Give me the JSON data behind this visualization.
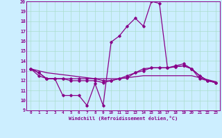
{
  "xlabel": "Windchill (Refroidissement éolien,°C)",
  "x": [
    0,
    1,
    2,
    3,
    4,
    5,
    6,
    7,
    8,
    9,
    10,
    11,
    12,
    13,
    14,
    15,
    16,
    17,
    18,
    19,
    20,
    21,
    22,
    23
  ],
  "line1": [
    13.2,
    12.8,
    12.2,
    12.2,
    10.5,
    10.5,
    10.5,
    9.5,
    11.7,
    9.5,
    15.9,
    16.5,
    17.5,
    18.3,
    17.5,
    20.0,
    19.8,
    13.3,
    13.5,
    13.7,
    13.2,
    12.2,
    12.0,
    11.8
  ],
  "line2": [
    13.2,
    12.8,
    12.2,
    12.2,
    12.2,
    12.2,
    12.2,
    12.2,
    12.2,
    12.0,
    12.0,
    12.2,
    12.3,
    12.8,
    13.2,
    13.3,
    13.3,
    13.3,
    13.4,
    13.5,
    13.2,
    12.5,
    12.0,
    11.8
  ],
  "line3": [
    13.2,
    12.5,
    12.2,
    12.2,
    12.2,
    12.0,
    12.0,
    12.0,
    12.0,
    11.8,
    12.0,
    12.2,
    12.5,
    12.8,
    13.0,
    13.3,
    13.3,
    13.3,
    13.4,
    13.5,
    13.2,
    12.5,
    12.0,
    11.8
  ],
  "line4": [
    13.2,
    13.0,
    12.8,
    12.7,
    12.6,
    12.5,
    12.4,
    12.3,
    12.2,
    12.2,
    12.2,
    12.2,
    12.3,
    12.4,
    12.5,
    12.5,
    12.5,
    12.5,
    12.5,
    12.5,
    12.5,
    12.3,
    12.1,
    11.9
  ],
  "ylim": [
    9,
    20
  ],
  "xlim": [
    -0.5,
    23.5
  ],
  "color": "#880088",
  "bg_color": "#cceeff",
  "grid_color": "#aaddcc",
  "tick_color": "#880088",
  "label_color": "#880088",
  "marker": "D",
  "markersize": 1.8,
  "linewidth": 0.9
}
